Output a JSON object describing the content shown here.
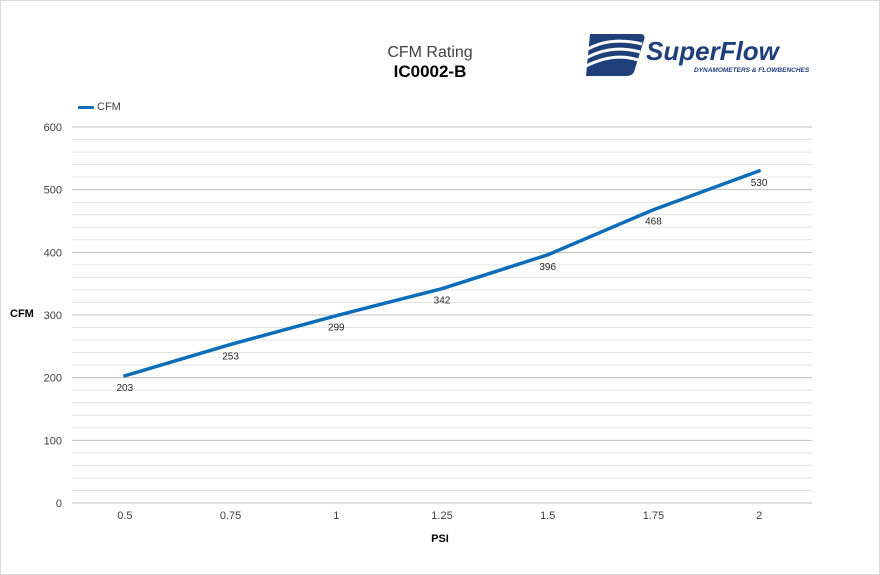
{
  "chart_data": {
    "type": "line",
    "title": "CFM Rating",
    "subtitle": "IC0002-B",
    "xlabel": "PSI",
    "ylabel": "CFM",
    "categories": [
      "0.5",
      "0.75",
      "1",
      "1.25",
      "1.5",
      "1.75",
      "2"
    ],
    "series": [
      {
        "name": "CFM",
        "values": [
          203,
          253,
          299,
          342,
          396,
          468,
          530
        ],
        "color": "#0e6db8"
      }
    ],
    "ylim": [
      0,
      600
    ],
    "yticks": [
      0,
      100,
      200,
      300,
      400,
      500,
      600
    ],
    "grid": true,
    "legend_placement": "top-left",
    "data_labels": true
  },
  "logo": {
    "name": "SuperFlow",
    "tagline": "DYNAMOMETERS & FLOWBENCHES",
    "color": "#1f3f7a"
  }
}
